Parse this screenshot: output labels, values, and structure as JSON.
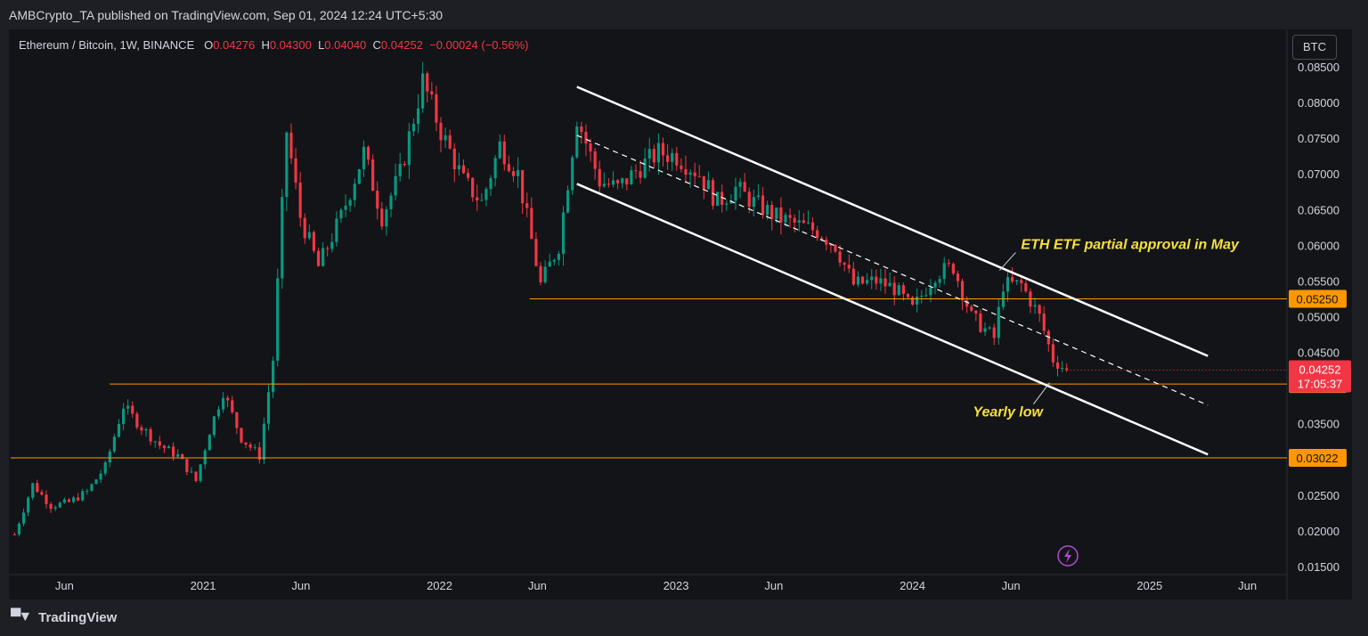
{
  "publisher": "AMBCrypto_TA published on TradingView.com, Sep 01, 2024 12:24 UTC+5:30",
  "legend": {
    "symbol": "Ethereum / Bitcoin, 1W, BINANCE",
    "open_label": "O",
    "open": "0.04276",
    "high_label": "H",
    "high": "0.04300",
    "low_label": "L",
    "low": "0.04040",
    "close_label": "C",
    "close": "0.04252",
    "change": "−0.00024 (−0.56%)"
  },
  "currency": "BTC",
  "footer": "TradingView",
  "colors": {
    "up": "#089981",
    "down": "#f23645",
    "level": "#ff9800",
    "channel": "#ffffff",
    "annotation": "#f6e03a",
    "price_badge": "#f23645",
    "level_badge": "#ff9800"
  },
  "chart_data": {
    "type": "candlestick",
    "title": "Ethereum / Bitcoin, 1W, BINANCE",
    "y_ticks": [
      "0.08500",
      "0.08000",
      "0.07500",
      "0.07000",
      "0.06500",
      "0.06000",
      "0.05500",
      "0.05000",
      "0.04500",
      "0.03500",
      "0.02500",
      "0.02000",
      "0.01500"
    ],
    "y_tick_values": [
      0.085,
      0.08,
      0.075,
      0.07,
      0.065,
      0.06,
      0.055,
      0.05,
      0.045,
      0.035,
      0.025,
      0.02,
      0.015
    ],
    "x_ticks": [
      "Jun",
      "2021",
      "Jun",
      "2022",
      "Jun",
      "2023",
      "Jun",
      "2024",
      "Jun",
      "2025",
      "Jun"
    ],
    "x_tick_dates": [
      "2020-06-01",
      "2021-01-01",
      "2021-06-01",
      "2022-01-01",
      "2022-06-01",
      "2023-01-01",
      "2023-06-01",
      "2024-01-01",
      "2024-06-01",
      "2025-01-01",
      "2025-06-01"
    ],
    "ylim": [
      0.0145,
      0.0875
    ],
    "xlim": [
      "2020-03-10",
      "2025-08-01"
    ],
    "grid": false,
    "approx_weekly_close": [
      [
        "2020-03-16",
        0.0195
      ],
      [
        "2020-04-13",
        0.0265
      ],
      [
        "2020-05-11",
        0.0235
      ],
      [
        "2020-06-08",
        0.024
      ],
      [
        "2020-07-06",
        0.0255
      ],
      [
        "2020-08-03",
        0.029
      ],
      [
        "2020-08-31",
        0.0375
      ],
      [
        "2020-09-28",
        0.0345
      ],
      [
        "2020-10-26",
        0.032
      ],
      [
        "2020-11-23",
        0.0305
      ],
      [
        "2020-12-21",
        0.027
      ],
      [
        "2021-01-11",
        0.034
      ],
      [
        "2021-02-01",
        0.0395
      ],
      [
        "2021-03-01",
        0.033
      ],
      [
        "2021-03-29",
        0.0305
      ],
      [
        "2021-04-19",
        0.044
      ],
      [
        "2021-05-10",
        0.076
      ],
      [
        "2021-05-31",
        0.064
      ],
      [
        "2021-06-28",
        0.057
      ],
      [
        "2021-08-02",
        0.064
      ],
      [
        "2021-09-06",
        0.073
      ],
      [
        "2021-10-04",
        0.064
      ],
      [
        "2021-11-01",
        0.07
      ],
      [
        "2021-12-06",
        0.083
      ],
      [
        "2022-01-03",
        0.076
      ],
      [
        "2022-02-07",
        0.069
      ],
      [
        "2022-03-07",
        0.066
      ],
      [
        "2022-04-04",
        0.074
      ],
      [
        "2022-05-02",
        0.07
      ],
      [
        "2022-06-06",
        0.0545
      ],
      [
        "2022-07-04",
        0.06
      ],
      [
        "2022-08-01",
        0.078
      ],
      [
        "2022-09-05",
        0.069
      ],
      [
        "2022-10-03",
        0.068
      ],
      [
        "2022-11-07",
        0.071
      ],
      [
        "2022-12-05",
        0.073
      ],
      [
        "2023-01-02",
        0.0725
      ],
      [
        "2023-02-06",
        0.07
      ],
      [
        "2023-03-06",
        0.066
      ],
      [
        "2023-04-03",
        0.068
      ],
      [
        "2023-05-01",
        0.066
      ],
      [
        "2023-06-05",
        0.064
      ],
      [
        "2023-07-03",
        0.063
      ],
      [
        "2023-08-07",
        0.062
      ],
      [
        "2023-09-04",
        0.06
      ],
      [
        "2023-10-02",
        0.0545
      ],
      [
        "2023-11-06",
        0.055
      ],
      [
        "2023-12-04",
        0.054
      ],
      [
        "2024-01-01",
        0.051
      ],
      [
        "2024-02-05",
        0.056
      ],
      [
        "2024-03-04",
        0.057
      ],
      [
        "2024-04-01",
        0.05
      ],
      [
        "2024-05-06",
        0.047
      ],
      [
        "2024-05-20",
        0.0545
      ],
      [
        "2024-06-17",
        0.0545
      ],
      [
        "2024-07-15",
        0.05
      ],
      [
        "2024-08-05",
        0.044
      ],
      [
        "2024-08-26",
        0.04252
      ]
    ],
    "horizontal_levels": [
      {
        "value": 0.0525,
        "label": "0.05250"
      },
      {
        "value": 0.04057,
        "label": "0.04057"
      },
      {
        "value": 0.03022,
        "label": "0.03022"
      }
    ],
    "current_price": {
      "value": 0.04252,
      "label": "0.04252",
      "countdown": "17:05:37"
    },
    "channel": {
      "upper": [
        [
          "2022-08-01",
          0.0822
        ],
        [
          "2025-04-01",
          0.0445
        ]
      ],
      "lower": [
        [
          "2022-08-01",
          0.0686
        ],
        [
          "2025-04-01",
          0.0307
        ]
      ],
      "mid": [
        [
          "2022-08-01",
          0.0754
        ],
        [
          "2025-04-01",
          0.0376
        ]
      ]
    },
    "annotations": [
      {
        "text": "ETH ETF partial approval in May",
        "date": "2024-05-20",
        "value": 0.057
      },
      {
        "text": "Yearly low",
        "date": "2024-08-05",
        "value": 0.0405
      }
    ]
  }
}
